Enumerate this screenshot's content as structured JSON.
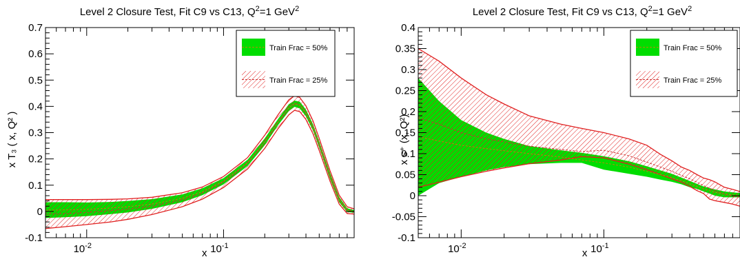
{
  "colors": {
    "band50": "#00dd00",
    "band25_stroke": "#e02020",
    "central50": "#b8860b",
    "central25": "#cc3333",
    "axis": "#000000"
  },
  "chart_data": [
    {
      "type": "area",
      "title": "Level 2 Closure Test, Fit C9 vs C13,  Q²=1 GeV²",
      "title_parts": {
        "pre": "Level 2 Closure Test, Fit C9 vs C13,  Q",
        "sup1": "2",
        "mid": "=1 GeV",
        "sup2": "2"
      },
      "xlabel": "x",
      "ylabel": "x T₃ ( x, Q² )",
      "x_scale": "log",
      "xlim": [
        0.005,
        0.9
      ],
      "ylim": [
        -0.1,
        0.7
      ],
      "y_ticks": [
        -0.1,
        0,
        0.1,
        0.2,
        0.3,
        0.4,
        0.5,
        0.6,
        0.7
      ],
      "y_tick_labels": [
        "-0.1",
        "0",
        "0.1",
        "0.2",
        "0.3",
        "0.4",
        "0.5",
        "0.6",
        "0.7"
      ],
      "x_tick_labels": [
        {
          "value": 0.01,
          "base": "10",
          "exp": "-2"
        },
        {
          "value": 0.1,
          "base": "10",
          "exp": "-1"
        }
      ],
      "legend_placement": "top-right",
      "legend": [
        "Train Frac = 50%",
        "Train Frac = 25%"
      ],
      "x": [
        0.005,
        0.007,
        0.01,
        0.015,
        0.02,
        0.03,
        0.05,
        0.07,
        0.1,
        0.15,
        0.2,
        0.25,
        0.3,
        0.33,
        0.36,
        0.4,
        0.45,
        0.5,
        0.6,
        0.7,
        0.8,
        0.9
      ],
      "series": [
        {
          "name": "Train Frac = 50%",
          "central": [
            0.005,
            0.006,
            0.008,
            0.013,
            0.018,
            0.028,
            0.05,
            0.075,
            0.115,
            0.185,
            0.265,
            0.34,
            0.395,
            0.41,
            0.405,
            0.375,
            0.32,
            0.255,
            0.135,
            0.045,
            0.005,
            0.0
          ],
          "upper": [
            0.035,
            0.035,
            0.034,
            0.036,
            0.04,
            0.047,
            0.065,
            0.088,
            0.127,
            0.197,
            0.278,
            0.352,
            0.408,
            0.422,
            0.418,
            0.388,
            0.332,
            0.267,
            0.147,
            0.055,
            0.012,
            0.005
          ],
          "lower": [
            -0.025,
            -0.022,
            -0.018,
            -0.01,
            -0.004,
            0.01,
            0.035,
            0.062,
            0.103,
            0.173,
            0.252,
            0.328,
            0.382,
            0.398,
            0.392,
            0.362,
            0.308,
            0.243,
            0.123,
            0.035,
            -0.002,
            -0.005
          ]
        },
        {
          "name": "Train Frac = 25%",
          "central": [
            -0.01,
            -0.008,
            -0.004,
            0.003,
            0.009,
            0.02,
            0.044,
            0.07,
            0.112,
            0.183,
            0.264,
            0.34,
            0.396,
            0.412,
            0.406,
            0.376,
            0.32,
            0.255,
            0.135,
            0.045,
            0.005,
            0.0
          ],
          "upper": [
            0.045,
            0.045,
            0.045,
            0.046,
            0.048,
            0.054,
            0.071,
            0.093,
            0.133,
            0.205,
            0.29,
            0.368,
            0.425,
            0.44,
            0.434,
            0.402,
            0.345,
            0.278,
            0.155,
            0.062,
            0.018,
            0.01
          ],
          "lower": [
            -0.065,
            -0.058,
            -0.05,
            -0.04,
            -0.03,
            -0.012,
            0.018,
            0.047,
            0.091,
            0.162,
            0.24,
            0.315,
            0.368,
            0.385,
            0.38,
            0.35,
            0.296,
            0.232,
            0.115,
            0.028,
            -0.008,
            -0.01
          ]
        }
      ]
    },
    {
      "type": "area",
      "title": "Level 2 Closure Test, Fit C9 vs C13,  Q²=1 GeV²",
      "title_parts": {
        "pre": "Level 2 Closure Test, Fit C9 vs C13,  Q",
        "sup1": "2",
        "mid": "=1 GeV",
        "sup2": "2"
      },
      "xlabel": "x",
      "ylabel": "x s⁺ (x, Q²)",
      "x_scale": "log",
      "xlim": [
        0.005,
        0.9
      ],
      "ylim": [
        -0.1,
        0.4
      ],
      "y_ticks": [
        -0.1,
        -0.05,
        0,
        0.05,
        0.1,
        0.15,
        0.2,
        0.25,
        0.3,
        0.35,
        0.4
      ],
      "y_tick_labels": [
        "-0.1",
        "-0.05",
        "0",
        "0.05",
        "0.1",
        "0.15",
        "0.2",
        "0.25",
        "0.3",
        "0.35",
        "0.4"
      ],
      "x_tick_labels": [
        {
          "value": 0.01,
          "base": "10",
          "exp": "-2"
        },
        {
          "value": 0.1,
          "base": "10",
          "exp": "-1"
        }
      ],
      "legend_placement": "top-right",
      "legend": [
        "Train Frac = 50%",
        "Train Frac = 25%"
      ],
      "x": [
        0.005,
        0.007,
        0.01,
        0.015,
        0.02,
        0.03,
        0.05,
        0.07,
        0.1,
        0.15,
        0.2,
        0.25,
        0.3,
        0.35,
        0.4,
        0.45,
        0.5,
        0.55,
        0.6,
        0.7,
        0.8,
        0.9
      ],
      "series": [
        {
          "name": "Train Frac = 50%",
          "central": [
            0.14,
            0.13,
            0.12,
            0.112,
            0.107,
            0.1,
            0.092,
            0.085,
            0.078,
            0.068,
            0.058,
            0.05,
            0.043,
            0.035,
            0.028,
            0.022,
            0.016,
            0.012,
            0.008,
            0.004,
            0.002,
            0.001
          ],
          "upper": [
            0.28,
            0.225,
            0.18,
            0.15,
            0.135,
            0.118,
            0.108,
            0.102,
            0.094,
            0.082,
            0.07,
            0.06,
            0.052,
            0.043,
            0.035,
            0.028,
            0.022,
            0.018,
            0.015,
            0.01,
            0.008,
            0.006
          ],
          "lower": [
            0.0,
            0.03,
            0.045,
            0.06,
            0.068,
            0.075,
            0.078,
            0.078,
            0.062,
            0.052,
            0.045,
            0.038,
            0.033,
            0.027,
            0.02,
            0.016,
            0.01,
            0.005,
            0.0,
            -0.004,
            -0.004,
            -0.004
          ]
        },
        {
          "name": "Train Frac = 25%",
          "central": [
            0.185,
            0.17,
            0.15,
            0.135,
            0.128,
            0.118,
            0.11,
            0.105,
            0.108,
            0.095,
            0.08,
            0.068,
            0.058,
            0.048,
            0.04,
            0.032,
            0.024,
            0.018,
            0.012,
            0.004,
            -0.002,
            -0.004
          ],
          "upper": [
            0.35,
            0.32,
            0.28,
            0.24,
            0.218,
            0.19,
            0.17,
            0.16,
            0.15,
            0.135,
            0.12,
            0.098,
            0.083,
            0.068,
            0.06,
            0.05,
            0.042,
            0.038,
            0.033,
            0.02,
            0.015,
            0.01
          ],
          "lower": [
            0.02,
            0.032,
            0.045,
            0.058,
            0.066,
            0.076,
            0.085,
            0.093,
            0.09,
            0.075,
            0.062,
            0.05,
            0.04,
            0.032,
            0.022,
            0.012,
            0.005,
            -0.008,
            -0.012,
            -0.016,
            -0.02,
            -0.025
          ]
        }
      ]
    }
  ]
}
